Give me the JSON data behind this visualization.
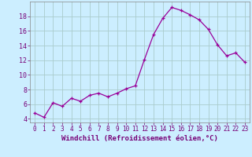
{
  "x_vals": [
    0,
    1,
    2,
    3,
    4,
    5,
    6,
    7,
    8,
    9,
    10,
    11,
    12,
    13,
    14,
    15,
    16,
    17,
    18,
    19,
    20,
    21,
    22,
    23
  ],
  "y_vals": [
    4.8,
    4.2,
    6.2,
    5.7,
    6.8,
    6.4,
    7.2,
    7.5,
    7.0,
    7.5,
    8.1,
    8.5,
    12.1,
    15.5,
    17.7,
    19.2,
    18.8,
    18.2,
    17.5,
    16.2,
    14.1,
    12.6,
    13.0,
    11.7
  ],
  "line_color": "#990099",
  "bg_color": "#cceeff",
  "grid_color": "#aacccc",
  "xlabel": "Windchill (Refroidissement éolien,°C)",
  "xlim": [
    -0.5,
    23.5
  ],
  "ylim": [
    3.5,
    20.0
  ],
  "yticks": [
    4,
    6,
    8,
    10,
    12,
    14,
    16,
    18
  ],
  "xticks": [
    0,
    1,
    2,
    3,
    4,
    5,
    6,
    7,
    8,
    9,
    10,
    11,
    12,
    13,
    14,
    15,
    16,
    17,
    18,
    19,
    20,
    21,
    22,
    23
  ],
  "font_color": "#770077",
  "tick_fontsize": 5.5,
  "xlabel_fontsize": 6.5
}
